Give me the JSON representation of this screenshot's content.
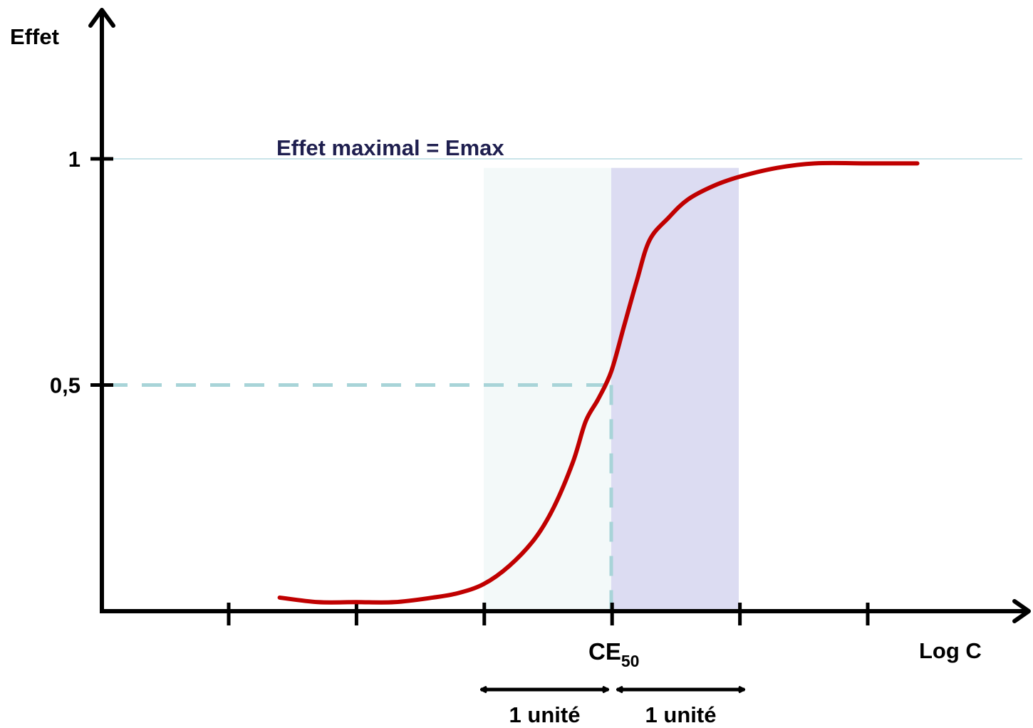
{
  "chart_data": {
    "type": "line",
    "xlabel": "Log C",
    "ylabel": "Effet",
    "y_ticks": [
      {
        "value": 0.5,
        "label": "0,5"
      },
      {
        "value": 1,
        "label": "1"
      }
    ],
    "emax": {
      "value": 1,
      "label": "Effet maximal = Emax"
    },
    "ce50": {
      "value": 0,
      "label_main": "CE",
      "label_sub": "50"
    },
    "x_ticks_count": 6,
    "shaded_bands": [
      {
        "name": "band-left",
        "from": -1,
        "to": 0,
        "color": "#f3f9f9"
      },
      {
        "name": "band-right",
        "from": 0,
        "to": 1,
        "color": "#dcdcf2"
      }
    ],
    "unit_spans": [
      {
        "from": -1,
        "to": 0,
        "label": "1 unité"
      },
      {
        "from": 0,
        "to": 1,
        "label": "1 unité"
      }
    ],
    "curve": {
      "color": "#c00000",
      "x": [
        -2.6,
        -2.3,
        -2.0,
        -1.7,
        -1.4,
        -1.2,
        -1.0,
        -0.8,
        -0.6,
        -0.45,
        -0.3,
        -0.2,
        -0.1,
        0.0,
        0.1,
        0.2,
        0.3,
        0.45,
        0.6,
        0.8,
        1.0,
        1.3,
        1.6,
        2.0,
        2.3,
        2.4
      ],
      "y": [
        0.03,
        0.02,
        0.02,
        0.02,
        0.03,
        0.04,
        0.06,
        0.1,
        0.16,
        0.23,
        0.33,
        0.42,
        0.47,
        0.53,
        0.63,
        0.73,
        0.82,
        0.87,
        0.91,
        0.94,
        0.96,
        0.98,
        0.99,
        0.99,
        0.99,
        0.99
      ]
    },
    "guide_color": "#a8d4d8",
    "emax_line_color": "#b8dbe2",
    "axis_color": "#000000"
  }
}
